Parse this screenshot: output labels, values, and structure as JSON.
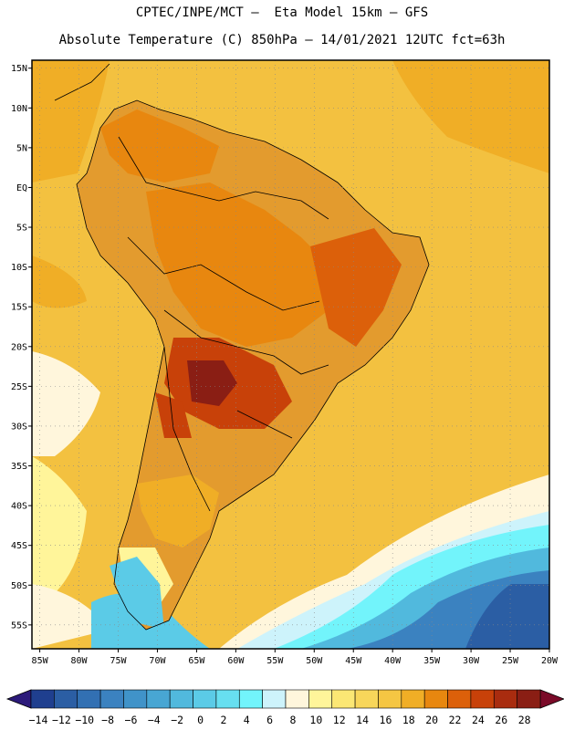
{
  "header": {
    "line1": "CPTEC/INPE/MCT –  Eta Model 15km – GFS",
    "line2": "Absolute Temperature (C) 850hPa – 14/01/2021 12UTC fct=63h"
  },
  "map": {
    "lat_labels": [
      "15N",
      "10N",
      "5N",
      "EQ",
      "5S",
      "10S",
      "15S",
      "20S",
      "25S",
      "30S",
      "35S",
      "40S",
      "45S",
      "50S",
      "55S"
    ],
    "lon_labels": [
      "85W",
      "80W",
      "75W",
      "70W",
      "65W",
      "60W",
      "55W",
      "50W",
      "45W",
      "40W",
      "35W",
      "30W",
      "25W",
      "20W"
    ],
    "lat_range": [
      -58,
      16
    ],
    "lon_range": [
      -86,
      -20
    ],
    "colors": {
      "ocean_bg": "#f3c140",
      "land_bg": "#e39b2e"
    }
  },
  "colorbar": {
    "labels": [
      "-14",
      "-12",
      "-10",
      "-8",
      "-6",
      "-4",
      "-2",
      "0",
      "2",
      "4",
      "6",
      "8",
      "10",
      "12",
      "14",
      "16",
      "18",
      "20",
      "22",
      "24",
      "26",
      "28"
    ],
    "colors": [
      "#1f3f8f",
      "#2b5ea4",
      "#3270b3",
      "#3b82c0",
      "#4093c9",
      "#48a6d3",
      "#51b9dd",
      "#5bcbe7",
      "#67dff0",
      "#72f4fb",
      "#cdf3fb",
      "#fff6dc",
      "#fff59a",
      "#fbe774",
      "#f8d65a",
      "#f5c643",
      "#f0ae26",
      "#e8870f",
      "#dc600a",
      "#c84109",
      "#a92c0f",
      "#8a1e14"
    ],
    "left_arrow_color": "#2c1a7a",
    "right_arrow_color": "#7a0a28"
  }
}
